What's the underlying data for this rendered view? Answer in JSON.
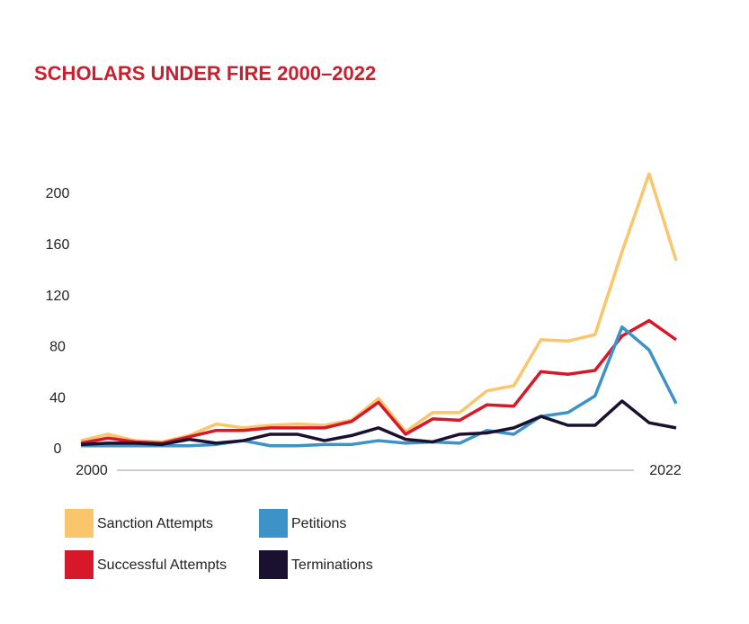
{
  "chart_data": {
    "type": "line",
    "title": "SCHOLARS UNDER FIRE 2000–2022",
    "x": [
      2000,
      2001,
      2002,
      2003,
      2004,
      2005,
      2006,
      2007,
      2008,
      2009,
      2010,
      2011,
      2012,
      2013,
      2014,
      2015,
      2016,
      2017,
      2018,
      2019,
      2020,
      2021,
      2022
    ],
    "series": [
      {
        "name": "Sanction Attempts",
        "color": "#f9c66b",
        "values": [
          7,
          12,
          7,
          6,
          11,
          20,
          17,
          19,
          20,
          19,
          23,
          40,
          14,
          29,
          29,
          46,
          50,
          86,
          85,
          90,
          155,
          216,
          148
        ]
      },
      {
        "name": "Successful Attempts",
        "color": "#d7182a",
        "values": [
          5,
          9,
          6,
          5,
          10,
          15,
          15,
          17,
          17,
          17,
          22,
          37,
          12,
          24,
          23,
          35,
          34,
          61,
          59,
          62,
          89,
          101,
          86
        ]
      },
      {
        "name": "Petitions",
        "color": "#3d93c8",
        "values": [
          3,
          3,
          3,
          3,
          3,
          4,
          7,
          3,
          3,
          4,
          4,
          7,
          5,
          6,
          5,
          15,
          12,
          26,
          29,
          42,
          96,
          78,
          36
        ]
      },
      {
        "name": "Terminations",
        "color": "#1a1030",
        "values": [
          4,
          5,
          5,
          4,
          8,
          5,
          7,
          12,
          12,
          7,
          11,
          17,
          8,
          6,
          12,
          13,
          17,
          26,
          19,
          19,
          38,
          21,
          17
        ]
      }
    ],
    "xlim": [
      2000,
      2022
    ],
    "xticks": [
      2000,
      2022
    ],
    "ylim": [
      0,
      200
    ],
    "yticks": [
      0,
      40,
      80,
      120,
      160,
      200
    ]
  }
}
